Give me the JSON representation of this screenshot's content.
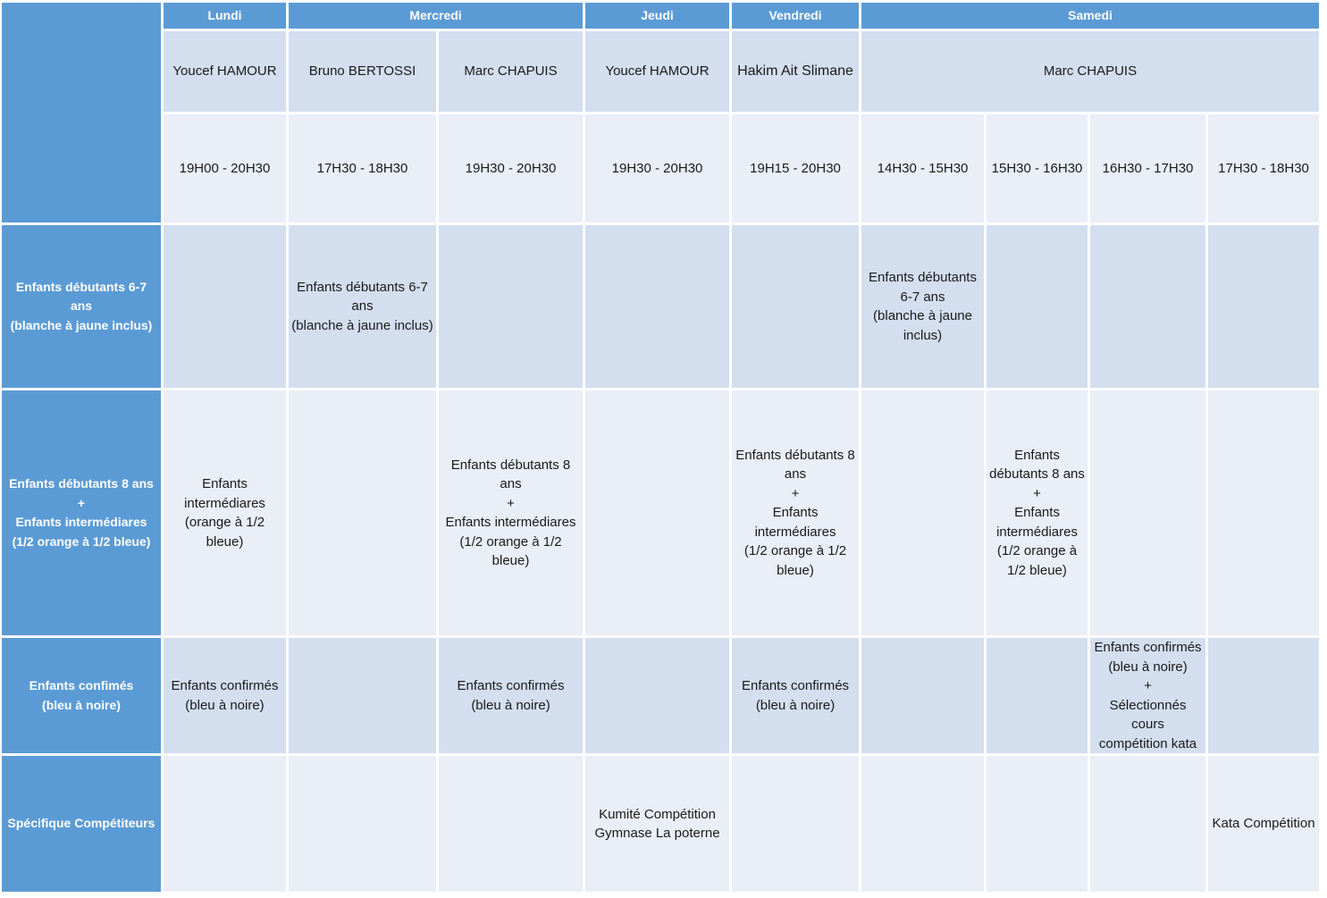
{
  "days": [
    "Lundi",
    "Mercredi",
    "Jeudi",
    "Vendredi",
    "Samedi"
  ],
  "teachers": [
    "Youcef HAMOUR",
    "Bruno BERTOSSI",
    "Marc CHAPUIS",
    "Youcef HAMOUR",
    "Hakim Ait Slimane",
    "Marc CHAPUIS"
  ],
  "times": [
    "19H00 - 20H30",
    "17H30 - 18H30",
    "19H30 - 20H30",
    "19H30 - 20H30",
    "19H15 - 20H30",
    "14H30 - 15H30",
    "15H30 - 16H30",
    "16H30 - 17H30",
    "17H30 - 18H30"
  ],
  "row_headers": {
    "r1": {
      "l1": "Enfants débutants 6-7 ans",
      "l2": "(blanche à jaune inclus)"
    },
    "r2": {
      "l1": "Enfants débutants 8 ans",
      "l2": "+",
      "l3": "Enfants intermédiares",
      "l4": "(1/2 orange à 1/2 bleue)"
    },
    "r3": {
      "l1": "Enfants confimés",
      "l2": "(bleu à noire)"
    },
    "r4": {
      "l1": "Spécifique Compétiteurs"
    }
  },
  "cells": {
    "r1_bruno": {
      "l1": "Enfants débutants 6-7",
      "l2": "ans",
      "l3": "(blanche à jaune inclus)"
    },
    "r1_sam1": {
      "l1": "Enfants débutants",
      "l2": "6-7 ans",
      "l3": "(blanche à jaune",
      "l4": "inclus)"
    },
    "r2_lundi": {
      "l1": "Enfants",
      "l2": "intermédiares",
      "l3": "(orange à 1/2 bleue)"
    },
    "r2_marc": {
      "l1": "Enfants débutants 8",
      "l2": "ans",
      "l3": "+",
      "l4": "Enfants intermédiares",
      "l5": "(1/2 orange à 1/2",
      "l6": "bleue)"
    },
    "r2_vend": {
      "l1": "Enfants débutants 8",
      "l2": "ans",
      "l3": "+",
      "l4": "Enfants",
      "l5": "intermédiares",
      "l6": "(1/2 orange à 1/2",
      "l7": "bleue)"
    },
    "r2_sam2": {
      "l1": "Enfants",
      "l2": "débutants 8 ans",
      "l3": "+",
      "l4": "Enfants",
      "l5": "intermédiares",
      "l6": "(1/2 orange à",
      "l7": "1/2 bleue)"
    },
    "r3_lundi": {
      "l1": "Enfants confirmés",
      "l2": "(bleu à noire)"
    },
    "r3_marc": {
      "l1": "Enfants confirmés",
      "l2": "(bleu à noire)"
    },
    "r3_vend": {
      "l1": "Enfants confirmés",
      "l2": "(bleu à noire)"
    },
    "r3_sam3": {
      "l1": "Enfants confirmés",
      "l2": "(bleu à noire)",
      "l3": "+",
      "l4": "Sélectionnés cours",
      "l5": "compétition kata"
    },
    "r4_jeudi": {
      "l1": "Kumité Compétition",
      "l2": "Gymnase La poterne"
    },
    "r4_sam4": {
      "l1": "Kata Compétition"
    }
  }
}
